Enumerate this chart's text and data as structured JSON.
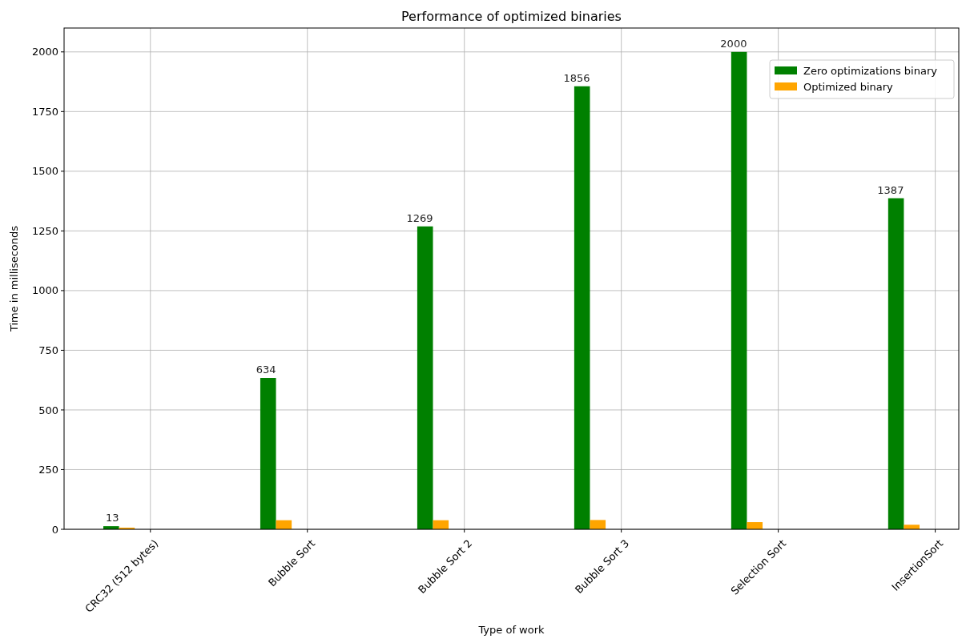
{
  "chart_data": {
    "type": "bar",
    "title": "Performance of optimized binaries",
    "xlabel": "Type of work",
    "ylabel": "Time in milliseconds",
    "categories": [
      "CRC32 (512 bytes)",
      "Bubble Sort",
      "Bubble Sort 2",
      "Bubble Sort 3",
      "Selection Sort",
      "InsertionSort"
    ],
    "series": [
      {
        "name": "Zero optimizations binary",
        "color": "#008000",
        "values": [
          13,
          634,
          1269,
          1856,
          2000,
          1387
        ],
        "value_labels": [
          "13",
          "634",
          "1269",
          "1856",
          "2000",
          "1387"
        ]
      },
      {
        "name": "Optimized binary",
        "color": "#ffa500",
        "values": [
          7,
          38,
          38,
          39,
          30,
          19
        ]
      }
    ],
    "ylim": [
      0,
      2100
    ],
    "yticks": [
      0,
      250,
      500,
      750,
      1000,
      1250,
      1500,
      1750,
      2000
    ],
    "grid": true,
    "legend": "top right"
  }
}
